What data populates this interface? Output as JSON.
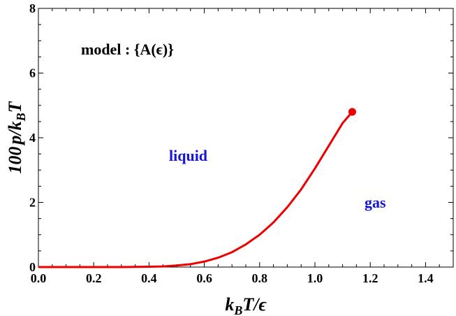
{
  "chart_data": {
    "type": "line",
    "title": "",
    "xlabel": "",
    "ylabel": "",
    "xlim": [
      0,
      1.5
    ],
    "ylim": [
      0,
      8
    ],
    "grid": false,
    "x_ticks": [
      "0.0",
      "0.2",
      "0.4",
      "0.6",
      "0.8",
      "1.0",
      "1.2",
      "1.4"
    ],
    "x_tick_values": [
      0,
      0.2,
      0.4,
      0.6,
      0.8,
      1.0,
      1.2,
      1.4
    ],
    "y_ticks": [
      "0",
      "2",
      "4",
      "6",
      "8"
    ],
    "y_tick_values": [
      0,
      2,
      4,
      6,
      8
    ],
    "series": [
      {
        "color": "#ee0000",
        "x": [
          0.0,
          0.1,
          0.2,
          0.3,
          0.4,
          0.45,
          0.5,
          0.55,
          0.6,
          0.65,
          0.7,
          0.75,
          0.8,
          0.85,
          0.9,
          0.95,
          1.0,
          1.05,
          1.1,
          1.135
        ],
        "y": [
          0.0,
          0.0,
          0.0,
          0.0,
          0.01,
          0.02,
          0.05,
          0.09,
          0.17,
          0.29,
          0.46,
          0.7,
          1.0,
          1.38,
          1.85,
          2.4,
          3.05,
          3.75,
          4.45,
          4.8
        ]
      }
    ],
    "endpoint": {
      "x": 1.135,
      "y": 4.8,
      "color": "#ee0000"
    }
  },
  "labels": {
    "x_axis_title": "k_B T/ϵ",
    "y_axis_title": "100 p/k_B T",
    "model_text": "model : {A(ϵ)}",
    "liquid_text": "liquid",
    "gas_text": "gas"
  },
  "colors": {
    "annotation_blue": "#1515d8",
    "annotation_black": "#000000"
  }
}
